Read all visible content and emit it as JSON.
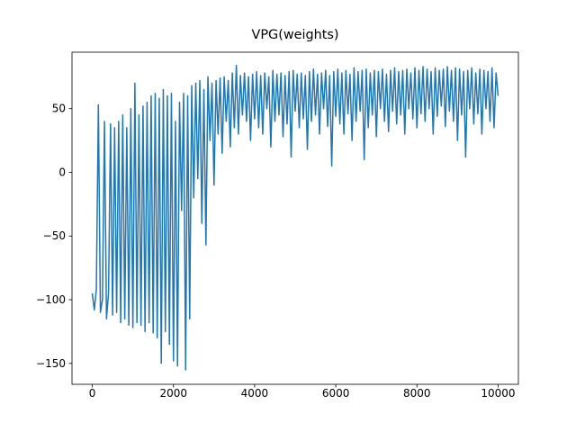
{
  "chart_data": {
    "type": "line",
    "title": "VPG(weights)",
    "color": "#1f77b4",
    "xlim": [
      -500,
      10500
    ],
    "ylim": [
      -166.4,
      94.3
    ],
    "xticks": [
      0,
      2000,
      4000,
      6000,
      8000,
      10000
    ],
    "yticks": [
      {
        "value": -150,
        "label": "−150"
      },
      {
        "value": -100,
        "label": "−100"
      },
      {
        "value": -50,
        "label": "−50"
      },
      0,
      50
    ],
    "x": [
      0,
      50,
      100,
      150,
      200,
      250,
      300,
      350,
      400,
      450,
      500,
      550,
      600,
      650,
      700,
      750,
      800,
      850,
      900,
      950,
      1000,
      1050,
      1100,
      1150,
      1200,
      1250,
      1300,
      1350,
      1400,
      1450,
      1500,
      1550,
      1600,
      1650,
      1700,
      1750,
      1800,
      1850,
      1900,
      1950,
      2000,
      2050,
      2100,
      2150,
      2200,
      2250,
      2300,
      2350,
      2400,
      2450,
      2500,
      2550,
      2600,
      2650,
      2700,
      2750,
      2800,
      2850,
      2900,
      2950,
      3000,
      3050,
      3100,
      3150,
      3200,
      3250,
      3300,
      3350,
      3400,
      3450,
      3500,
      3550,
      3600,
      3650,
      3700,
      3750,
      3800,
      3850,
      3900,
      3950,
      4000,
      4050,
      4100,
      4150,
      4200,
      4250,
      4300,
      4350,
      4400,
      4450,
      4500,
      4550,
      4600,
      4650,
      4700,
      4750,
      4800,
      4850,
      4900,
      4950,
      5000,
      5050,
      5100,
      5150,
      5200,
      5250,
      5300,
      5350,
      5400,
      5450,
      5500,
      5550,
      5600,
      5650,
      5700,
      5750,
      5800,
      5850,
      5900,
      5950,
      6000,
      6050,
      6100,
      6150,
      6200,
      6250,
      6300,
      6350,
      6400,
      6450,
      6500,
      6550,
      6600,
      6650,
      6700,
      6750,
      6800,
      6850,
      6900,
      6950,
      7000,
      7050,
      7100,
      7150,
      7200,
      7250,
      7300,
      7350,
      7400,
      7450,
      7500,
      7550,
      7600,
      7650,
      7700,
      7750,
      7800,
      7850,
      7900,
      7950,
      8000,
      8050,
      8100,
      8150,
      8200,
      8250,
      8300,
      8350,
      8400,
      8450,
      8500,
      8550,
      8600,
      8650,
      8700,
      8750,
      8800,
      8850,
      8900,
      8950,
      9000,
      9050,
      9100,
      9150,
      9200,
      9250,
      9300,
      9350,
      9400,
      9450,
      9500,
      9550,
      9600,
      9650,
      9700,
      9750,
      9800,
      9850,
      9900,
      9950,
      10000
    ],
    "values": [
      -95,
      -108,
      -92,
      53,
      -110,
      -100,
      40,
      -115,
      -95,
      38,
      -112,
      35,
      -110,
      40,
      -118,
      45,
      -115,
      35,
      -120,
      50,
      -122,
      70,
      -118,
      45,
      -120,
      52,
      -125,
      55,
      -118,
      60,
      -126,
      62,
      -130,
      58,
      -150,
      65,
      -125,
      60,
      -135,
      62,
      -148,
      40,
      -152,
      55,
      -30,
      62,
      -155,
      60,
      -115,
      68,
      -20,
      70,
      -5,
      72,
      -40,
      65,
      -57,
      75,
      25,
      70,
      -10,
      72,
      30,
      74,
      15,
      75,
      40,
      72,
      20,
      78,
      35,
      84,
      30,
      76,
      45,
      78,
      40,
      75,
      25,
      77,
      42,
      79,
      35,
      76,
      30,
      78,
      50,
      75,
      20,
      80,
      40,
      77,
      45,
      78,
      28,
      76,
      38,
      79,
      12,
      80,
      48,
      77,
      35,
      78,
      42,
      76,
      18,
      79,
      40,
      81,
      45,
      77,
      30,
      78,
      50,
      80,
      36,
      76,
      5,
      79,
      44,
      81,
      38,
      78,
      30,
      80,
      46,
      77,
      25,
      82,
      40,
      79,
      48,
      80,
      10,
      81,
      35,
      78,
      45,
      80,
      28,
      79,
      50,
      81,
      40,
      77,
      32,
      80,
      48,
      82,
      38,
      79,
      45,
      80,
      30,
      81,
      50,
      78,
      42,
      82,
      35,
      80,
      46,
      83,
      40,
      81,
      50,
      79,
      30,
      82,
      44,
      80,
      52,
      81,
      36,
      83,
      48,
      80,
      40,
      82,
      25,
      81,
      45,
      79,
      12,
      80,
      50,
      82,
      38,
      78,
      46,
      81,
      30,
      80,
      50,
      79,
      40,
      82,
      35,
      78,
      60
    ]
  }
}
